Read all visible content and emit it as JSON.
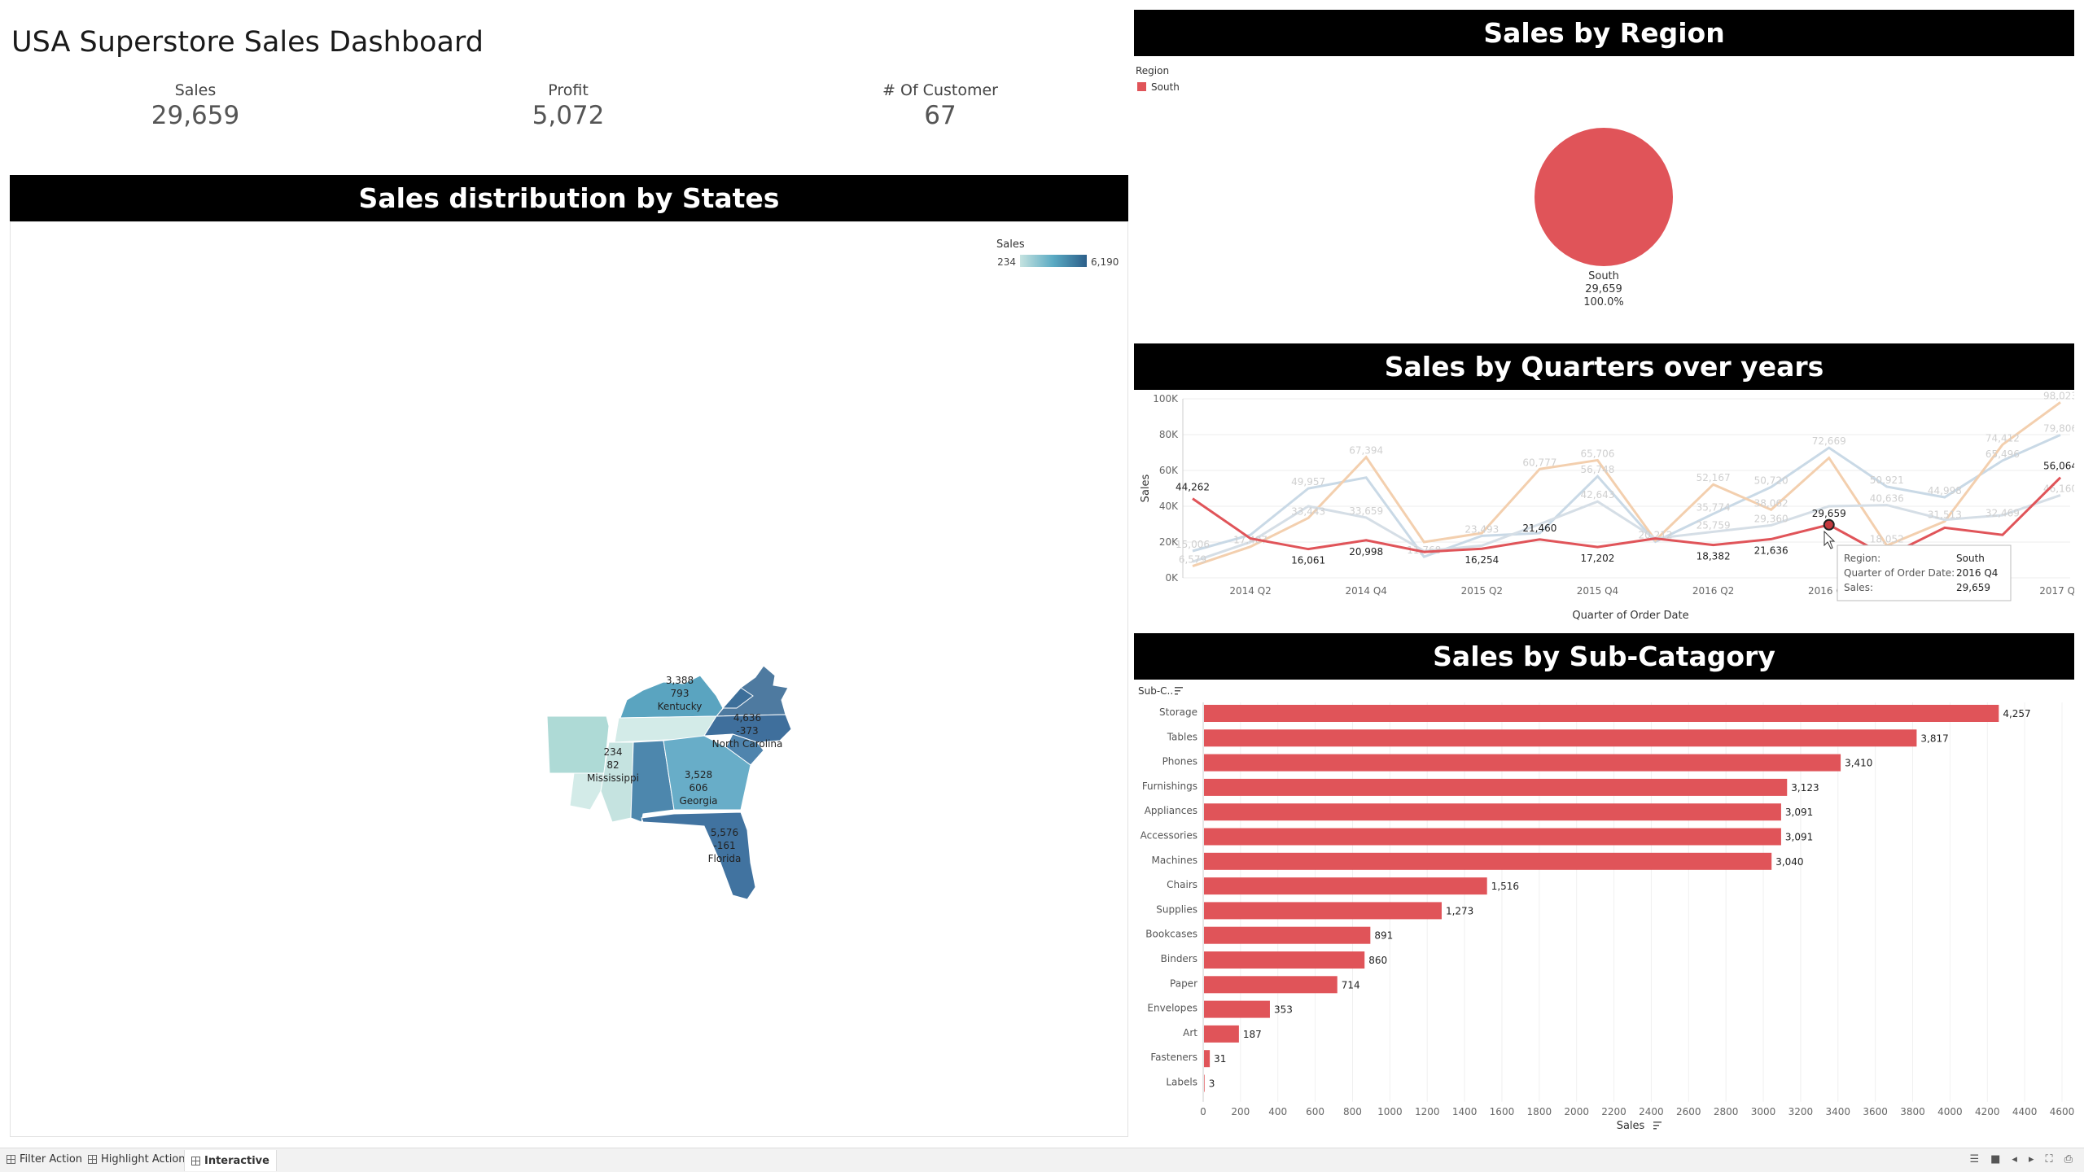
{
  "header": {
    "title": "USA Superstore Sales Dashboard"
  },
  "kpis": [
    {
      "label": "Sales",
      "value": "29,659"
    },
    {
      "label": "Profit",
      "value": "5,072"
    },
    {
      "label": "# Of Customer",
      "value": "67"
    }
  ],
  "map": {
    "title": "Sales distribution by States",
    "legend": {
      "title": "Sales",
      "min": "234",
      "max": "6,190"
    },
    "states": [
      {
        "name": "Kentucky",
        "sales": "3,388",
        "profit": "793"
      },
      {
        "name": "North Carolina",
        "sales": "4,636",
        "profit": "-373"
      },
      {
        "name": "Mississippi",
        "sales": "234",
        "profit": "82"
      },
      {
        "name": "Georgia",
        "sales": "3,528",
        "profit": "606"
      },
      {
        "name": "Florida",
        "sales": "5,576",
        "profit": "-161"
      }
    ]
  },
  "region": {
    "title": "Sales by Region",
    "legend_title": "Region",
    "legend_item": "South",
    "slice_label": "South",
    "slice_value": "29,659",
    "slice_pct": "100.0%",
    "color": "#e05459"
  },
  "quarters": {
    "title": "Sales by Quarters over years",
    "ylabel": "Sales",
    "xlabel": "Quarter of Order Date",
    "y_ticks": [
      "100K",
      "80K",
      "60K",
      "40K",
      "20K",
      "0K"
    ],
    "x_ticks": [
      "2014 Q2",
      "2014 Q4",
      "2015 Q2",
      "2015 Q4",
      "2016 Q2",
      "2016 Q4",
      "2017 Q4"
    ],
    "tooltip": {
      "region_label": "Region:",
      "region_value": "South",
      "quarter_label": "Quarter of Order Date:",
      "quarter_value": "2016 Q4",
      "sales_label": "Sales:",
      "sales_value": "29,659"
    },
    "south_labels": [
      "44,262",
      "16,061",
      "20,998",
      "16,254",
      "21,460",
      "17,202",
      "18,382",
      "21,636",
      "29,659",
      "56,064"
    ],
    "faded_labels": [
      "15,006",
      "6,579",
      "17,407",
      "33,443",
      "49,957",
      "33,659",
      "67,394",
      "11,768",
      "23,493",
      "60,777",
      "56,748",
      "42,643",
      "65,706",
      "20,212",
      "52,167",
      "35,774",
      "25,759",
      "50,720",
      "38,062",
      "29,360",
      "72,669",
      "18,052",
      "40,636",
      "50,921",
      "31,513",
      "44,998",
      "74,412",
      "65,496",
      "32,469",
      "98,023",
      "79,806",
      "46,160"
    ]
  },
  "subcat": {
    "title": "Sales by Sub-Catagory",
    "header_label": "Sub-C..",
    "xlabel": "Sales",
    "x_ticks": [
      "0",
      "200",
      "400",
      "600",
      "800",
      "1000",
      "1200",
      "1400",
      "1600",
      "1800",
      "2000",
      "2200",
      "2400",
      "2600",
      "2800",
      "3000",
      "3200",
      "3400",
      "3600",
      "3800",
      "4000",
      "4200",
      "4400",
      "4600"
    ]
  },
  "chart_data": [
    {
      "type": "line",
      "title": "Sales by Quarters over years",
      "xlabel": "Quarter of Order Date",
      "ylabel": "Sales",
      "ylim": [
        0,
        100000
      ],
      "x": [
        "2014 Q1",
        "2014 Q2",
        "2014 Q3",
        "2014 Q4",
        "2015 Q1",
        "2015 Q2",
        "2015 Q3",
        "2015 Q4",
        "2016 Q1",
        "2016 Q2",
        "2016 Q3",
        "2016 Q4",
        "2017 Q1",
        "2017 Q2",
        "2017 Q3",
        "2017 Q4"
      ],
      "series": [
        {
          "name": "South",
          "values": [
            44262,
            22000,
            16061,
            20998,
            14500,
            16254,
            21460,
            17202,
            22000,
            18382,
            21636,
            29659,
            12000,
            28000,
            24000,
            56064
          ]
        }
      ]
    },
    {
      "type": "bar",
      "title": "Sales by Sub-Catagory",
      "xlabel": "Sales",
      "xlim": [
        0,
        4600
      ],
      "categories": [
        "Storage",
        "Tables",
        "Phones",
        "Furnishings",
        "Appliances",
        "Accessories",
        "Machines",
        "Chairs",
        "Supplies",
        "Bookcases",
        "Binders",
        "Paper",
        "Envelopes",
        "Art",
        "Fasteners",
        "Labels"
      ],
      "values": [
        4257,
        3817,
        3410,
        3123,
        3091,
        3091,
        3040,
        1516,
        1273,
        891,
        860,
        714,
        353,
        187,
        31,
        3
      ],
      "value_labels": [
        "4,257",
        "3,817",
        "3,410",
        "3,123",
        "3,091",
        "3,091",
        "3,040",
        "1,516",
        "1,273",
        "891",
        "860",
        "714",
        "353",
        "187",
        "31",
        "3"
      ]
    }
  ],
  "tabs": [
    {
      "label": "Filter Action"
    },
    {
      "label": "Highlight Action"
    },
    {
      "label": "Interactive"
    }
  ],
  "colors": {
    "accent": "#e05459",
    "band": "#000000",
    "map_dark": "#2c5f8a",
    "map_light": "#c5e3e0"
  }
}
